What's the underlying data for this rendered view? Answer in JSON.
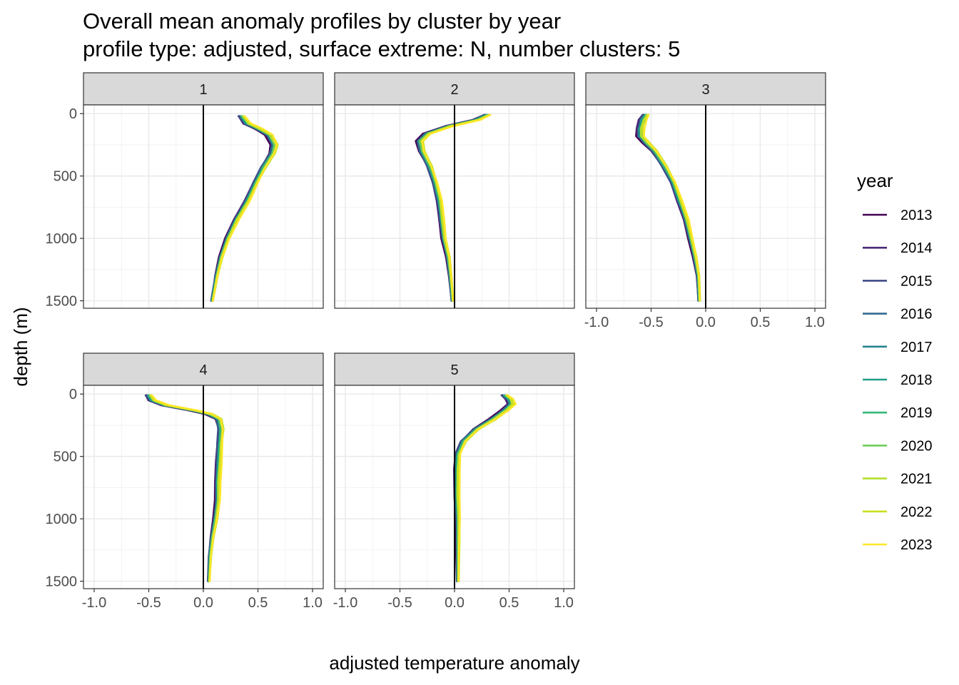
{
  "chart_data": {
    "type": "line",
    "title": "Overall mean anomaly profiles by cluster by year",
    "subtitle": "profile type: adjusted, surface extreme: N, number clusters: 5",
    "xlabel": "adjusted temperature anomaly",
    "ylabel": "depth (m)",
    "xlim": [
      -1.0,
      1.0
    ],
    "ylim": [
      1500,
      0
    ],
    "x_ticks": [
      "-1.0",
      "-0.5",
      "0.0",
      "0.5",
      "1.0"
    ],
    "y_ticks": [
      "0",
      "500",
      "1000",
      "1500"
    ],
    "x_tick_values": [
      -1.0,
      -0.5,
      0.0,
      0.5,
      1.0
    ],
    "y_tick_values": [
      0,
      500,
      1000,
      1500
    ],
    "grid": true,
    "reference_line_x": 0,
    "legend": {
      "title": "year",
      "position": "right",
      "entries": [
        {
          "label": "2013",
          "color": "#440154"
        },
        {
          "label": "2014",
          "color": "#482878"
        },
        {
          "label": "2015",
          "color": "#3E4A89"
        },
        {
          "label": "2016",
          "color": "#31688E"
        },
        {
          "label": "2017",
          "color": "#26828E"
        },
        {
          "label": "2018",
          "color": "#1F9E89"
        },
        {
          "label": "2019",
          "color": "#35B779"
        },
        {
          "label": "2020",
          "color": "#6DCD59"
        },
        {
          "label": "2021",
          "color": "#B4DE2C"
        },
        {
          "label": "2022",
          "color": "#C8E020"
        },
        {
          "label": "2023",
          "color": "#FDE725"
        }
      ]
    },
    "panels": [
      {
        "label": "1",
        "profile": [
          [
            0.35,
            20
          ],
          [
            0.4,
            80
          ],
          [
            0.5,
            120
          ],
          [
            0.6,
            170
          ],
          [
            0.65,
            250
          ],
          [
            0.63,
            320
          ],
          [
            0.55,
            430
          ],
          [
            0.48,
            550
          ],
          [
            0.4,
            700
          ],
          [
            0.3,
            850
          ],
          [
            0.22,
            1000
          ],
          [
            0.16,
            1150
          ],
          [
            0.12,
            1300
          ],
          [
            0.1,
            1400
          ],
          [
            0.08,
            1500
          ]
        ]
      },
      {
        "label": "2",
        "profile": [
          [
            0.3,
            10
          ],
          [
            0.2,
            50
          ],
          [
            -0.05,
            100
          ],
          [
            -0.25,
            160
          ],
          [
            -0.32,
            220
          ],
          [
            -0.3,
            300
          ],
          [
            -0.23,
            420
          ],
          [
            -0.18,
            550
          ],
          [
            -0.14,
            700
          ],
          [
            -0.12,
            850
          ],
          [
            -0.1,
            1000
          ],
          [
            -0.06,
            1150
          ],
          [
            -0.04,
            1300
          ],
          [
            -0.02,
            1500
          ]
        ]
      },
      {
        "label": "3",
        "profile": [
          [
            -0.55,
            10
          ],
          [
            -0.58,
            50
          ],
          [
            -0.6,
            120
          ],
          [
            -0.6,
            180
          ],
          [
            -0.55,
            230
          ],
          [
            -0.47,
            300
          ],
          [
            -0.38,
            420
          ],
          [
            -0.3,
            550
          ],
          [
            -0.24,
            700
          ],
          [
            -0.18,
            850
          ],
          [
            -0.14,
            1000
          ],
          [
            -0.1,
            1150
          ],
          [
            -0.07,
            1300
          ],
          [
            -0.06,
            1500
          ]
        ]
      },
      {
        "label": "4",
        "profile": [
          [
            -0.5,
            10
          ],
          [
            -0.47,
            50
          ],
          [
            -0.35,
            90
          ],
          [
            -0.1,
            130
          ],
          [
            0.05,
            160
          ],
          [
            0.14,
            200
          ],
          [
            0.16,
            280
          ],
          [
            0.15,
            400
          ],
          [
            0.14,
            550
          ],
          [
            0.13,
            700
          ],
          [
            0.13,
            850
          ],
          [
            0.11,
            1000
          ],
          [
            0.08,
            1150
          ],
          [
            0.06,
            1300
          ],
          [
            0.05,
            1500
          ]
        ]
      },
      {
        "label": "5",
        "profile": [
          [
            0.46,
            10
          ],
          [
            0.5,
            40
          ],
          [
            0.52,
            80
          ],
          [
            0.46,
            130
          ],
          [
            0.35,
            200
          ],
          [
            0.2,
            280
          ],
          [
            0.08,
            380
          ],
          [
            0.03,
            480
          ],
          [
            0.02,
            600
          ],
          [
            0.02,
            800
          ],
          [
            0.03,
            1000
          ],
          [
            0.03,
            1200
          ],
          [
            0.03,
            1500
          ]
        ]
      }
    ]
  }
}
